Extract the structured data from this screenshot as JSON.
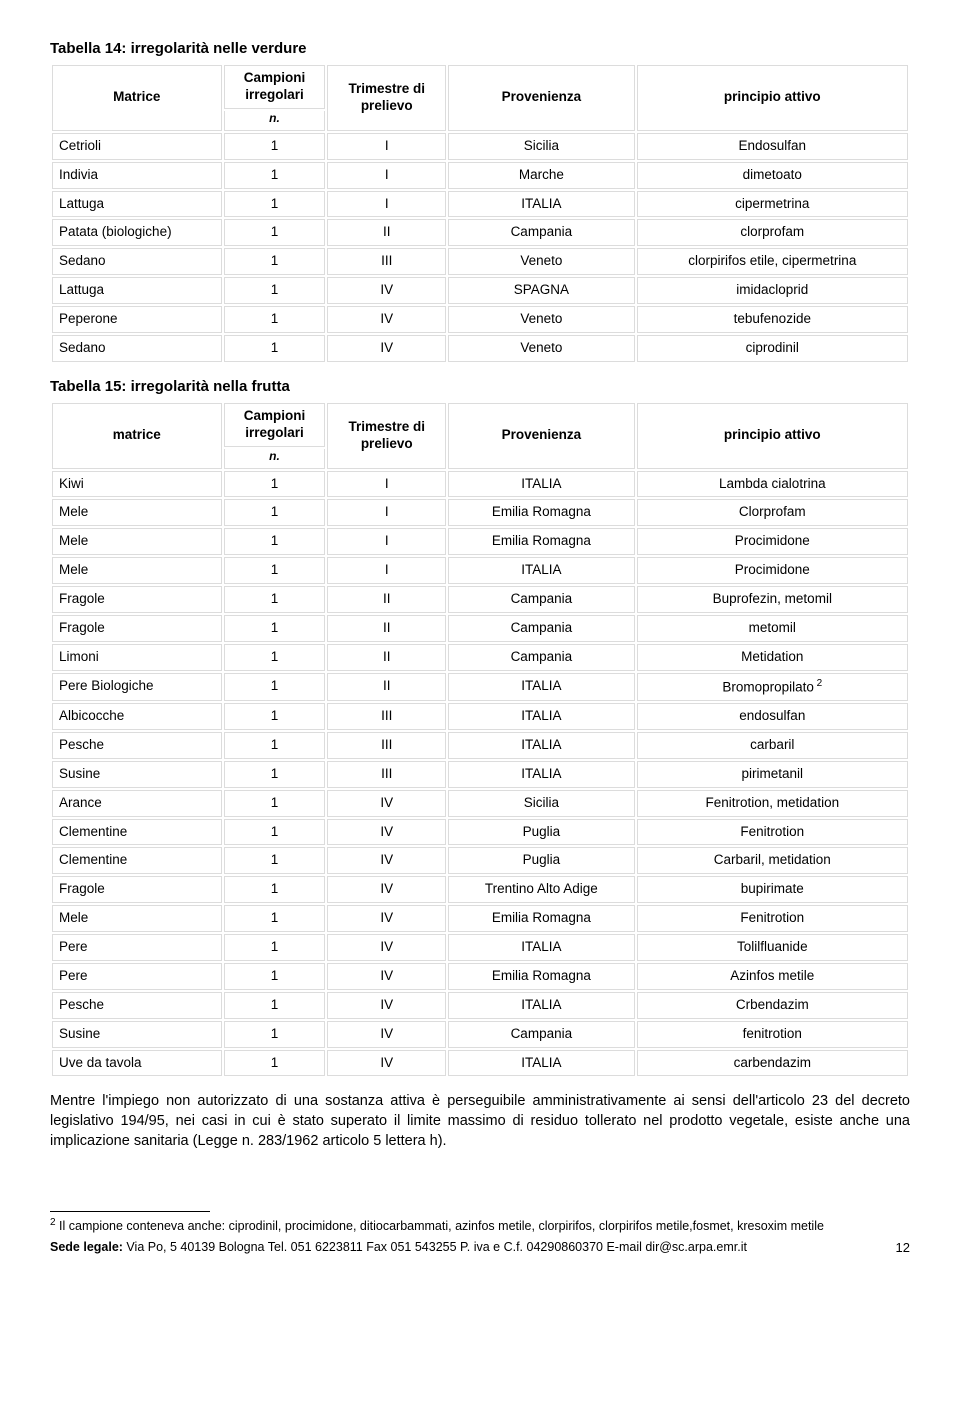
{
  "table14": {
    "title": "Tabella 14: irregolarità nelle verdure",
    "headers": {
      "matrice": "Matrice",
      "campioni": "Campioni irregolari",
      "n": "n.",
      "trimestre": "Trimestre di prelievo",
      "provenienza": "Provenienza",
      "principio": "principio attivo"
    },
    "rows": [
      {
        "m": "Cetrioli",
        "n": "1",
        "t": "I",
        "p": "Sicilia",
        "a": "Endosulfan"
      },
      {
        "m": "Indivia",
        "n": "1",
        "t": "I",
        "p": "Marche",
        "a": "dimetoato"
      },
      {
        "m": "Lattuga",
        "n": "1",
        "t": "I",
        "p": "ITALIA",
        "a": "cipermetrina"
      },
      {
        "m": "Patata (biologiche)",
        "n": "1",
        "t": "II",
        "p": "Campania",
        "a": "clorprofam"
      },
      {
        "m": "Sedano",
        "n": "1",
        "t": "III",
        "p": "Veneto",
        "a": "clorpirifos etile, cipermetrina"
      },
      {
        "m": "Lattuga",
        "n": "1",
        "t": "IV",
        "p": "SPAGNA",
        "a": "imidacloprid"
      },
      {
        "m": "Peperone",
        "n": "1",
        "t": "IV",
        "p": "Veneto",
        "a": "tebufenozide"
      },
      {
        "m": "Sedano",
        "n": "1",
        "t": "IV",
        "p": "Veneto",
        "a": "ciprodinil"
      }
    ]
  },
  "table15": {
    "title": "Tabella 15: irregolarità nella frutta",
    "headers": {
      "matrice": "matrice",
      "campioni": "Campioni irregolari",
      "n": "n.",
      "trimestre": "Trimestre di prelievo",
      "provenienza": "Provenienza",
      "principio": "principio attivo"
    },
    "rows": [
      {
        "m": "Kiwi",
        "n": "1",
        "t": "I",
        "p": "ITALIA",
        "a": "Lambda cialotrina"
      },
      {
        "m": "Mele",
        "n": "1",
        "t": "I",
        "p": "Emilia Romagna",
        "a": "Clorprofam"
      },
      {
        "m": "Mele",
        "n": "1",
        "t": "I",
        "p": "Emilia Romagna",
        "a": "Procimidone"
      },
      {
        "m": "Mele",
        "n": "1",
        "t": "I",
        "p": "ITALIA",
        "a": "Procimidone"
      },
      {
        "m": "Fragole",
        "n": "1",
        "t": "II",
        "p": "Campania",
        "a": "Buprofezin, metomil"
      },
      {
        "m": "Fragole",
        "n": "1",
        "t": "II",
        "p": "Campania",
        "a": "metomil"
      },
      {
        "m": "Limoni",
        "n": "1",
        "t": "II",
        "p": "Campania",
        "a": "Metidation"
      },
      {
        "m": "Pere Biologiche",
        "n": "1",
        "t": "II",
        "p": "ITALIA",
        "a": "Bromopropilato",
        "sup": "2"
      },
      {
        "m": "Albicocche",
        "n": "1",
        "t": "III",
        "p": "ITALIA",
        "a": "endosulfan"
      },
      {
        "m": "Pesche",
        "n": "1",
        "t": "III",
        "p": "ITALIA",
        "a": "carbaril"
      },
      {
        "m": "Susine",
        "n": "1",
        "t": "III",
        "p": "ITALIA",
        "a": "pirimetanil"
      },
      {
        "m": "Arance",
        "n": "1",
        "t": "IV",
        "p": "Sicilia",
        "a": "Fenitrotion, metidation"
      },
      {
        "m": "Clementine",
        "n": "1",
        "t": "IV",
        "p": "Puglia",
        "a": "Fenitrotion"
      },
      {
        "m": "Clementine",
        "n": "1",
        "t": "IV",
        "p": "Puglia",
        "a": "Carbaril, metidation"
      },
      {
        "m": "Fragole",
        "n": "1",
        "t": "IV",
        "p": "Trentino Alto Adige",
        "a": "bupirimate"
      },
      {
        "m": "Mele",
        "n": "1",
        "t": "IV",
        "p": "Emilia Romagna",
        "a": "Fenitrotion"
      },
      {
        "m": "Pere",
        "n": "1",
        "t": "IV",
        "p": "ITALIA",
        "a": "Tolilfluanide"
      },
      {
        "m": "Pere",
        "n": "1",
        "t": "IV",
        "p": "Emilia Romagna",
        "a": "Azinfos metile"
      },
      {
        "m": "Pesche",
        "n": "1",
        "t": "IV",
        "p": "ITALIA",
        "a": "Crbendazim"
      },
      {
        "m": "Susine",
        "n": "1",
        "t": "IV",
        "p": "Campania",
        "a": "fenitrotion"
      },
      {
        "m": "Uve da tavola",
        "n": "1",
        "t": "IV",
        "p": "ITALIA",
        "a": "carbendazim"
      }
    ]
  },
  "paragraph": "Mentre l'impiego non autorizzato di una sostanza attiva è perseguibile amministrativamente ai sensi dell'articolo 23 del decreto legislativo 194/95, nei casi in cui è stato superato il limite massimo di residuo tollerato nel prodotto vegetale, esiste anche una implicazione sanitaria (Legge n. 283/1962 articolo 5 lettera h).",
  "footnote": {
    "marker": "2",
    "text": " Il campione conteneva anche: ciprodinil, procimidone, ditiocarbammati, azinfos metile, clorpirifos, clorpirifos metile,fosmet, kresoxim metile"
  },
  "footer": {
    "label": "Sede legale:",
    "text": " Via Po, 5 40139 Bologna Tel. 051 6223811 Fax 051 543255 P. iva e C.f. 04290860370 E-mail dir@sc.arpa.emr.it",
    "page": "12"
  },
  "style": {
    "border_color": "#dcdcdc",
    "bg_color": "#ffffff",
    "text_color": "#000000",
    "font_family": "Arial",
    "body_fontsize": 14,
    "title_fontsize": 15,
    "cell_fontsize": 13.5,
    "footnote_fontsize": 12.5,
    "col_widths_pct": [
      20,
      12,
      14,
      22,
      32
    ]
  }
}
